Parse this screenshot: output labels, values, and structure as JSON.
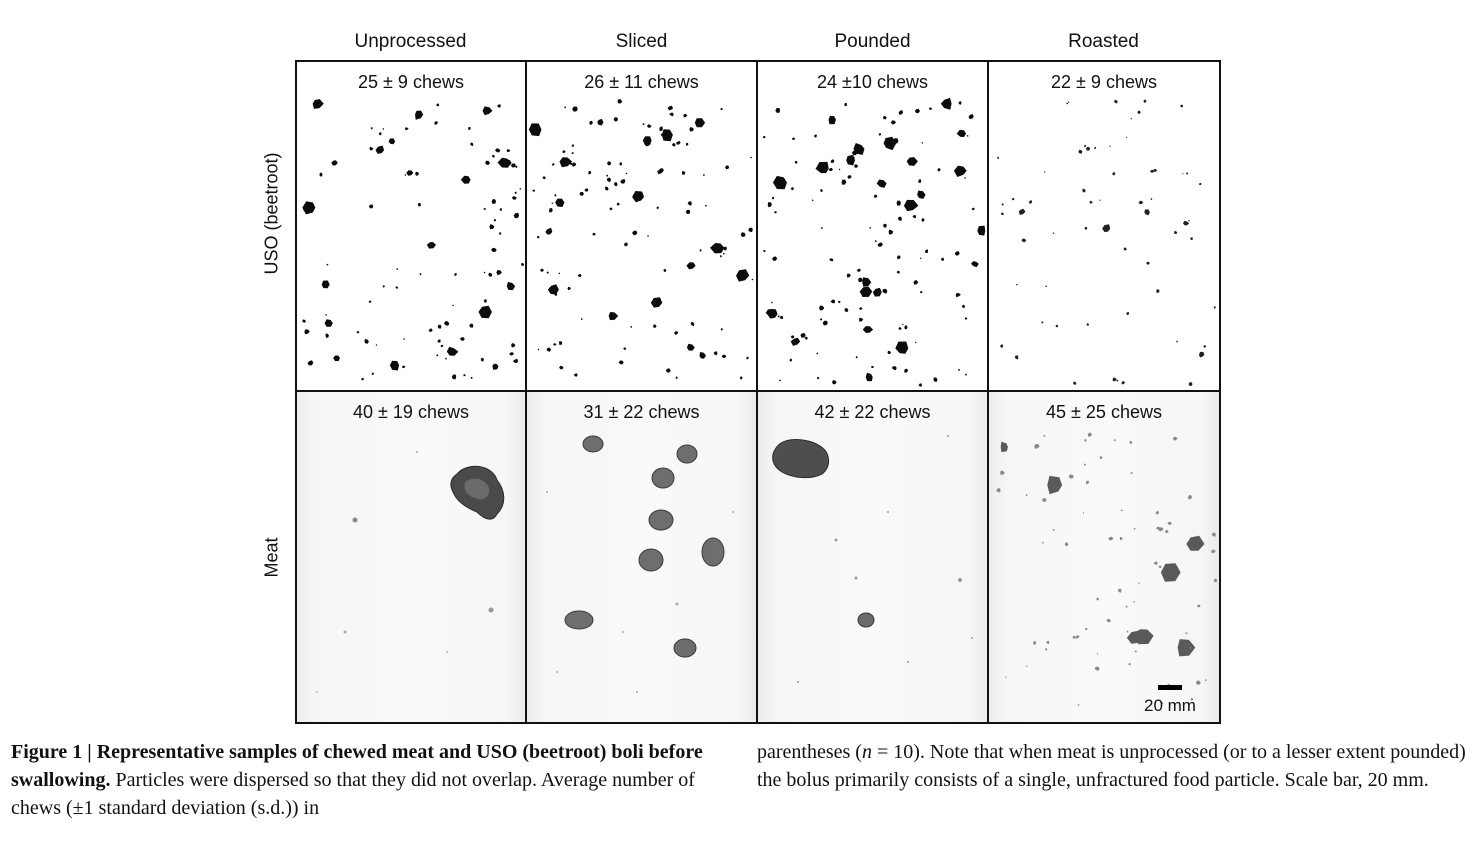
{
  "columns": [
    "Unprocessed",
    "Sliced",
    "Pounded",
    "Roasted"
  ],
  "rows": [
    "USO (beetroot)",
    "Meat"
  ],
  "chews": {
    "uso": [
      "25 ± 9 chews",
      "26 ± 11 chews",
      "24 ±10 chews",
      "22 ± 9 chews"
    ],
    "meat": [
      "40 ± 19 chews",
      "31 ± 22 chews",
      "42 ± 22 chews",
      "45 ± 25 chews"
    ]
  },
  "scale_bar": "20 mm",
  "caption": {
    "title": "Figure 1 | Representative samples of chewed meat and USO (beetroot) boli before swallowing.",
    "text_left": "Particles were dispersed so that they did not overlap. Average number of chews (±1 standard deviation (s.d.)) in",
    "text_right_1": "parentheses (",
    "n_var": "n",
    "text_right_2": " = 10). Note that when meat is unprocessed (or to a lesser extent pounded) the bolus primarily consists of a single, unfractured food particle. Scale bar, 20 mm."
  }
}
